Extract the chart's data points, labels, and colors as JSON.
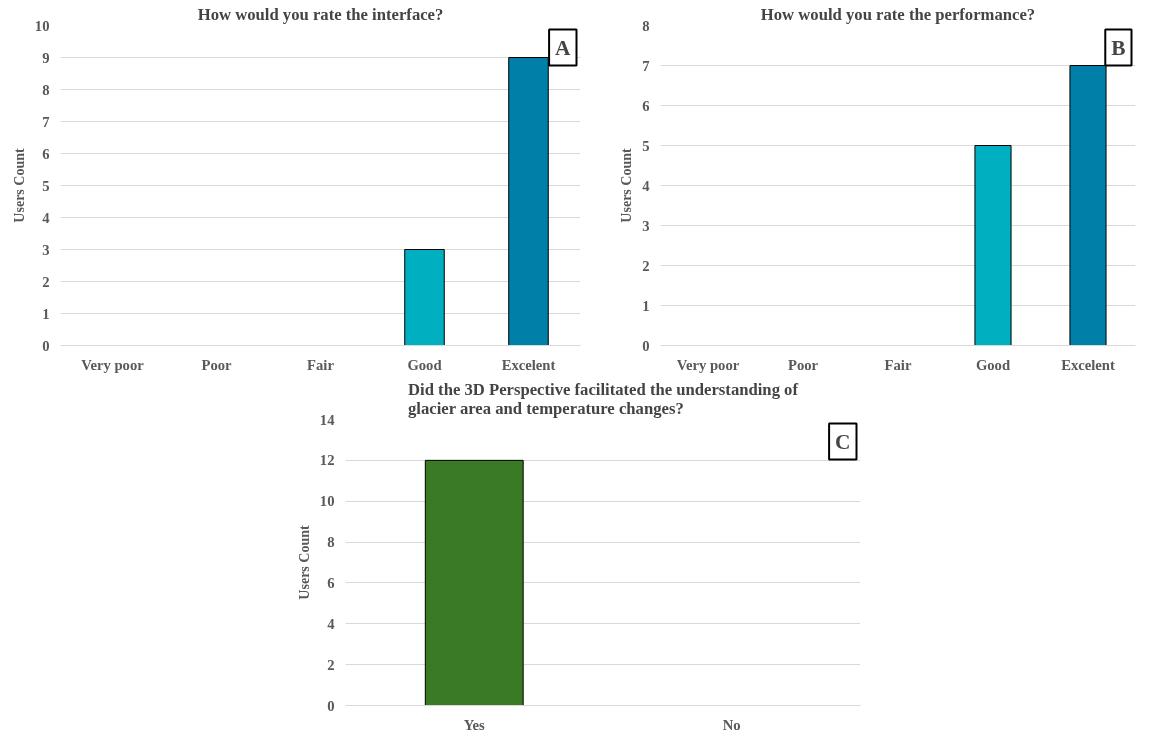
{
  "chart_data": [
    {
      "type": "bar",
      "title": "How would you rate the interface?",
      "ylabel": "Users Count",
      "categories": [
        "Very poor",
        "Poor",
        "Fair",
        "Good",
        "Excelent"
      ],
      "values": [
        0,
        0,
        0,
        3,
        9
      ],
      "colors": [
        "#00b0c0",
        "#00b0c0",
        "#00b0c0",
        "#00b0c0",
        "#0080a8"
      ],
      "ylim": [
        0,
        10
      ],
      "yticks": [
        0,
        1,
        2,
        3,
        4,
        5,
        6,
        7,
        8,
        9,
        10
      ],
      "grid": "y",
      "annotations": [
        "A"
      ]
    },
    {
      "type": "bar",
      "title": "How would you rate the performance?",
      "ylabel": "Users Count",
      "categories": [
        "Very poor",
        "Poor",
        "Fair",
        "Good",
        "Excelent"
      ],
      "values": [
        0,
        0,
        0,
        5,
        7
      ],
      "colors": [
        "#00b0c0",
        "#00b0c0",
        "#00b0c0",
        "#00b0c0",
        "#0080a8"
      ],
      "ylim": [
        0,
        8
      ],
      "yticks": [
        0,
        1,
        2,
        3,
        4,
        5,
        6,
        7,
        8
      ],
      "grid": "y",
      "annotations": [
        "B"
      ]
    },
    {
      "type": "bar",
      "title": "Did the 3D Perspective facilitated the understanding of glacier area and temperature changes?",
      "ylabel": "Users Count",
      "categories": [
        "Yes",
        "No"
      ],
      "values": [
        12,
        0
      ],
      "colors": [
        "#3a7a25",
        "#3a7a25"
      ],
      "ylim": [
        0,
        14
      ],
      "yticks": [
        0,
        2,
        4,
        6,
        8,
        10,
        12,
        14
      ],
      "grid": "y",
      "annotations": [
        "C"
      ]
    }
  ]
}
